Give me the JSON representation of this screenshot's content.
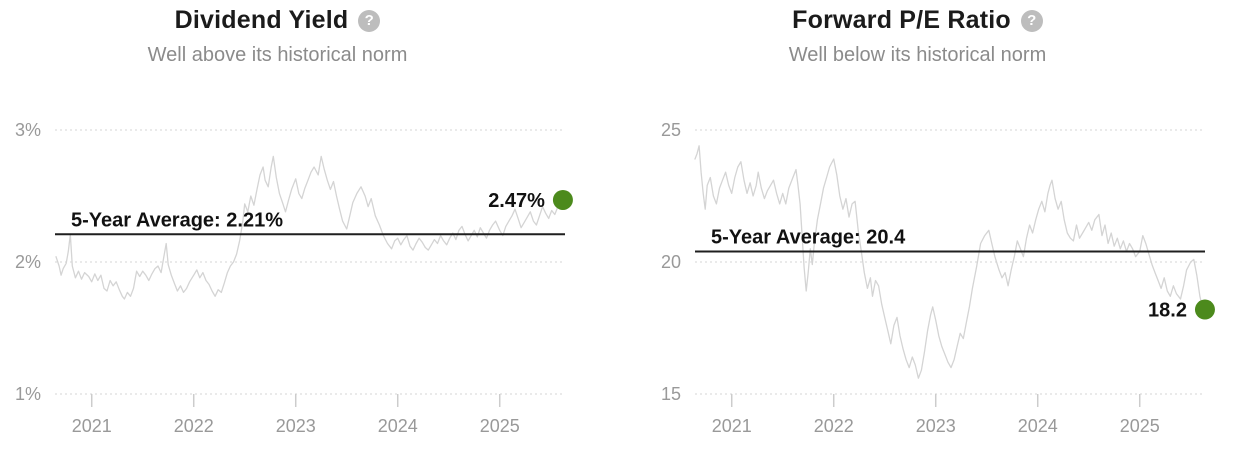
{
  "colors": {
    "series_line": "#d4d4d4",
    "grid_line": "#d4d4d4",
    "tick_mark": "#cccccc",
    "axis_text": "#999999",
    "average_line": "#1f1f1f",
    "label_text": "#111111",
    "current_dot": "#4c8a1c",
    "title_text": "#1b1b1b",
    "subtitle_text": "#8b8b8b",
    "help_icon_bg": "#bdbdbd"
  },
  "charts": [
    {
      "title": "Dividend Yield",
      "help_icon": "?",
      "subtitle": "Well above its historical norm",
      "average_label": "5-Year Average: 2.21%",
      "average_value": 2.21,
      "current_label": "2.47%",
      "current_value": 2.47,
      "chart_data": {
        "type": "line",
        "title": "Dividend Yield",
        "xlim": [
          2020.64,
          2025.64
        ],
        "ylim": [
          1,
          3
        ],
        "grid": "dotted-horizontal",
        "y_ticks": [
          {
            "label": "1%",
            "value": 1
          },
          {
            "label": "2%",
            "value": 2
          },
          {
            "label": "3%",
            "value": 3
          }
        ],
        "x_ticks": [
          {
            "label": "2021",
            "value": 2021
          },
          {
            "label": "2022",
            "value": 2022
          },
          {
            "label": "2023",
            "value": 2023
          },
          {
            "label": "2024",
            "value": 2024
          },
          {
            "label": "2025",
            "value": 2025
          }
        ],
        "series": [
          {
            "name": "Dividend Yield",
            "x": [
              2020.65,
              2020.68,
              2020.7,
              2020.72,
              2020.75,
              2020.77,
              2020.79,
              2020.81,
              2020.84,
              2020.87,
              2020.9,
              2020.93,
              2020.97,
              2021.0,
              2021.03,
              2021.06,
              2021.09,
              2021.12,
              2021.15,
              2021.18,
              2021.21,
              2021.24,
              2021.27,
              2021.3,
              2021.32,
              2021.35,
              2021.38,
              2021.41,
              2021.44,
              2021.47,
              2021.5,
              2021.53,
              2021.56,
              2021.59,
              2021.62,
              2021.65,
              2021.68,
              2021.71,
              2021.73,
              2021.75,
              2021.78,
              2021.81,
              2021.84,
              2021.87,
              2021.9,
              2021.93,
              2021.96,
              2022.0,
              2022.03,
              2022.06,
              2022.09,
              2022.12,
              2022.15,
              2022.18,
              2022.21,
              2022.24,
              2022.27,
              2022.3,
              2022.33,
              2022.36,
              2022.39,
              2022.42,
              2022.45,
              2022.48,
              2022.5,
              2022.53,
              2022.56,
              2022.59,
              2022.62,
              2022.65,
              2022.68,
              2022.7,
              2022.73,
              2022.76,
              2022.78,
              2022.81,
              2022.84,
              2022.87,
              2022.9,
              2022.93,
              2022.96,
              2023.0,
              2023.03,
              2023.06,
              2023.09,
              2023.12,
              2023.15,
              2023.18,
              2023.22,
              2023.25,
              2023.28,
              2023.31,
              2023.34,
              2023.37,
              2023.4,
              2023.43,
              2023.46,
              2023.5,
              2023.53,
              2023.56,
              2023.6,
              2023.64,
              2023.68,
              2023.71,
              2023.74,
              2023.78,
              2023.82,
              2023.86,
              2023.9,
              2023.94,
              2023.97,
              2024.0,
              2024.03,
              2024.06,
              2024.09,
              2024.12,
              2024.15,
              2024.18,
              2024.21,
              2024.24,
              2024.27,
              2024.3,
              2024.33,
              2024.36,
              2024.39,
              2024.42,
              2024.45,
              2024.48,
              2024.51,
              2024.54,
              2024.57,
              2024.6,
              2024.63,
              2024.66,
              2024.69,
              2024.72,
              2024.75,
              2024.78,
              2024.81,
              2024.84,
              2024.87,
              2024.9,
              2024.93,
              2024.96,
              2025.0,
              2025.03,
              2025.06,
              2025.09,
              2025.12,
              2025.15,
              2025.18,
              2025.21,
              2025.24,
              2025.27,
              2025.3,
              2025.33,
              2025.36,
              2025.39,
              2025.42,
              2025.45,
              2025.48,
              2025.51,
              2025.54,
              2025.57,
              2025.6
            ],
            "y": [
              2.04,
              1.97,
              1.9,
              1.95,
              1.99,
              2.08,
              2.21,
              1.97,
              1.88,
              1.93,
              1.87,
              1.92,
              1.89,
              1.85,
              1.91,
              1.86,
              1.9,
              1.8,
              1.78,
              1.86,
              1.82,
              1.85,
              1.79,
              1.74,
              1.72,
              1.77,
              1.74,
              1.8,
              1.93,
              1.89,
              1.93,
              1.9,
              1.86,
              1.91,
              1.95,
              1.97,
              1.92,
              2.05,
              2.14,
              1.98,
              1.9,
              1.84,
              1.78,
              1.82,
              1.77,
              1.8,
              1.85,
              1.9,
              1.94,
              1.88,
              1.92,
              1.86,
              1.83,
              1.78,
              1.74,
              1.79,
              1.77,
              1.84,
              1.92,
              1.97,
              2.0,
              2.06,
              2.16,
              2.3,
              2.44,
              2.38,
              2.5,
              2.43,
              2.55,
              2.66,
              2.72,
              2.62,
              2.57,
              2.72,
              2.8,
              2.64,
              2.52,
              2.45,
              2.38,
              2.47,
              2.55,
              2.63,
              2.52,
              2.48,
              2.56,
              2.62,
              2.68,
              2.72,
              2.66,
              2.8,
              2.7,
              2.62,
              2.55,
              2.61,
              2.5,
              2.4,
              2.31,
              2.25,
              2.35,
              2.45,
              2.52,
              2.57,
              2.5,
              2.42,
              2.48,
              2.35,
              2.28,
              2.2,
              2.14,
              2.1,
              2.16,
              2.18,
              2.13,
              2.17,
              2.2,
              2.12,
              2.09,
              2.14,
              2.18,
              2.15,
              2.11,
              2.09,
              2.13,
              2.17,
              2.14,
              2.2,
              2.16,
              2.13,
              2.18,
              2.22,
              2.17,
              2.24,
              2.27,
              2.21,
              2.16,
              2.2,
              2.24,
              2.19,
              2.26,
              2.22,
              2.18,
              2.24,
              2.28,
              2.31,
              2.24,
              2.2,
              2.27,
              2.31,
              2.35,
              2.4,
              2.33,
              2.26,
              2.3,
              2.34,
              2.38,
              2.31,
              2.28,
              2.35,
              2.42,
              2.37,
              2.33,
              2.39,
              2.36,
              2.42,
              2.47
            ]
          }
        ]
      }
    },
    {
      "title": "Forward P/E Ratio",
      "help_icon": "?",
      "subtitle": "Well below its historical norm",
      "average_label": "5-Year Average: 20.4",
      "average_value": 20.4,
      "current_label": "18.2",
      "current_value": 18.2,
      "chart_data": {
        "type": "line",
        "title": "Forward P/E Ratio",
        "xlim": [
          2020.64,
          2025.64
        ],
        "ylim": [
          15,
          25
        ],
        "grid": "dotted-horizontal",
        "y_ticks": [
          {
            "label": "15",
            "value": 15
          },
          {
            "label": "20",
            "value": 20
          },
          {
            "label": "25",
            "value": 25
          }
        ],
        "x_ticks": [
          {
            "label": "2021",
            "value": 2021
          },
          {
            "label": "2022",
            "value": 2022
          },
          {
            "label": "2023",
            "value": 2023
          },
          {
            "label": "2024",
            "value": 2024
          },
          {
            "label": "2025",
            "value": 2025
          }
        ],
        "series": [
          {
            "name": "Forward P/E Ratio",
            "x": [
              2020.64,
              2020.66,
              2020.68,
              2020.7,
              2020.72,
              2020.74,
              2020.76,
              2020.79,
              2020.82,
              2020.85,
              2020.88,
              2020.91,
              2020.94,
              2020.97,
              2021.0,
              2021.03,
              2021.06,
              2021.09,
              2021.12,
              2021.15,
              2021.18,
              2021.21,
              2021.24,
              2021.26,
              2021.29,
              2021.32,
              2021.35,
              2021.38,
              2021.41,
              2021.44,
              2021.47,
              2021.5,
              2021.53,
              2021.56,
              2021.6,
              2021.63,
              2021.65,
              2021.67,
              2021.69,
              2021.71,
              2021.73,
              2021.75,
              2021.77,
              2021.79,
              2021.81,
              2021.84,
              2021.87,
              2021.9,
              2021.93,
              2021.96,
              2022.0,
              2022.03,
              2022.06,
              2022.09,
              2022.12,
              2022.15,
              2022.18,
              2022.21,
              2022.24,
              2022.27,
              2022.3,
              2022.33,
              2022.36,
              2022.38,
              2022.41,
              2022.44,
              2022.47,
              2022.5,
              2022.53,
              2022.56,
              2022.59,
              2022.62,
              2022.65,
              2022.68,
              2022.71,
              2022.74,
              2022.77,
              2022.8,
              2022.83,
              2022.86,
              2022.89,
              2022.92,
              2022.95,
              2022.97,
              2023.0,
              2023.03,
              2023.06,
              2023.09,
              2023.12,
              2023.15,
              2023.18,
              2023.21,
              2023.24,
              2023.27,
              2023.3,
              2023.33,
              2023.36,
              2023.4,
              2023.44,
              2023.48,
              2023.52,
              2023.55,
              2023.58,
              2023.62,
              2023.65,
              2023.68,
              2023.71,
              2023.74,
              2023.77,
              2023.8,
              2023.83,
              2023.86,
              2023.89,
              2023.92,
              2023.95,
              2023.98,
              2024.01,
              2024.04,
              2024.07,
              2024.1,
              2024.12,
              2024.14,
              2024.17,
              2024.2,
              2024.23,
              2024.26,
              2024.29,
              2024.32,
              2024.35,
              2024.38,
              2024.41,
              2024.44,
              2024.47,
              2024.5,
              2024.53,
              2024.56,
              2024.6,
              2024.63,
              2024.66,
              2024.69,
              2024.72,
              2024.75,
              2024.78,
              2024.81,
              2024.84,
              2024.87,
              2024.9,
              2024.93,
              2024.96,
              2025.0,
              2025.03,
              2025.06,
              2025.09,
              2025.12,
              2025.15,
              2025.18,
              2025.21,
              2025.24,
              2025.27,
              2025.3,
              2025.33,
              2025.36,
              2025.4,
              2025.43,
              2025.46,
              2025.5,
              2025.53,
              2025.56,
              2025.59,
              2025.62
            ],
            "y": [
              23.9,
              24.1,
              24.4,
              23.4,
              22.6,
              22.0,
              22.9,
              23.2,
              22.5,
              22.2,
              22.8,
              23.1,
              23.4,
              22.9,
              22.6,
              23.2,
              23.6,
              23.8,
              23.1,
              22.6,
              23.0,
              22.5,
              22.9,
              23.4,
              22.8,
              22.4,
              22.7,
              22.9,
              23.1,
              22.6,
              22.2,
              22.6,
              22.2,
              22.8,
              23.2,
              23.5,
              22.9,
              22.2,
              21.0,
              19.8,
              18.9,
              19.6,
              20.5,
              19.9,
              20.7,
              21.6,
              22.2,
              22.8,
              23.2,
              23.6,
              23.9,
              23.3,
              22.5,
              22.0,
              22.4,
              21.7,
              22.2,
              22.3,
              21.2,
              20.4,
              19.6,
              19.0,
              19.4,
              18.7,
              19.3,
              19.1,
              18.4,
              17.9,
              17.4,
              16.9,
              17.6,
              17.9,
              17.2,
              16.7,
              16.3,
              16.0,
              16.4,
              16.1,
              15.6,
              15.9,
              16.6,
              17.4,
              18.0,
              18.3,
              17.8,
              17.2,
              16.8,
              16.5,
              16.2,
              16.0,
              16.3,
              16.8,
              17.3,
              17.1,
              17.7,
              18.3,
              19.0,
              19.8,
              20.7,
              21.0,
              21.2,
              20.7,
              20.2,
              19.7,
              19.4,
              19.6,
              19.1,
              19.7,
              20.2,
              20.8,
              20.5,
              20.2,
              20.9,
              21.4,
              21.1,
              21.6,
              22.0,
              22.3,
              21.9,
              22.6,
              22.9,
              23.1,
              22.4,
              22.0,
              22.3,
              21.6,
              21.1,
              20.9,
              20.8,
              21.4,
              20.9,
              21.1,
              21.3,
              21.5,
              21.2,
              21.6,
              21.8,
              21.0,
              21.4,
              20.7,
              21.1,
              20.6,
              20.9,
              20.5,
              20.8,
              20.4,
              20.7,
              20.5,
              20.2,
              20.4,
              21.0,
              20.7,
              20.3,
              19.9,
              19.6,
              19.3,
              19.0,
              19.4,
              18.9,
              18.7,
              19.1,
              18.8,
              18.6,
              19.1,
              19.7,
              20.0,
              20.1,
              19.5,
              18.7,
              18.2
            ]
          }
        ]
      }
    }
  ]
}
